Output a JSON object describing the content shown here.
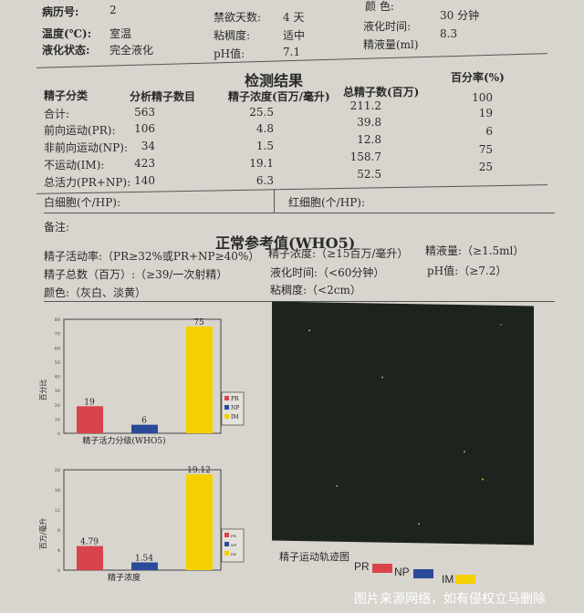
{
  "header": {
    "record_no_label": "病历号:",
    "record_no": "2",
    "abstinence_label": "禁欲天数:",
    "abstinence": "4 天",
    "color_label": "颜 色:",
    "liq_time_label": "液化时间:",
    "liq_time": "30  分钟",
    "temp_label": "温度(℃):",
    "temp": "室温",
    "viscosity_label": "粘稠度:",
    "viscosity": "适中",
    "volume_label": "精液量(ml)",
    "volume": "8.3",
    "liq_state_label": "液化状态:",
    "liq_state": "完全液化",
    "ph_label": "pH值:",
    "ph": "7.1"
  },
  "results": {
    "title": "检测结果",
    "columns": [
      "精子分类",
      "分析精子数目",
      "精子浓度(百万/毫升)",
      "总精子数(百万)",
      "百分率(%)"
    ],
    "rows": [
      {
        "label": "合计:",
        "count": "563",
        "conc": "25.5",
        "total": "211.2",
        "pct": "100"
      },
      {
        "label": "前向运动(PR):",
        "count": "106",
        "conc": "4.8",
        "total": "39.8",
        "pct": "19"
      },
      {
        "label": "非前向运动(NP):",
        "count": "34",
        "conc": "1.5",
        "total": "12.8",
        "pct": "6"
      },
      {
        "label": "不运动(IM):",
        "count": "423",
        "conc": "19.1",
        "total": "158.7",
        "pct": "75"
      },
      {
        "label": "总活力(PR+NP):",
        "count": "140",
        "conc": "6.3",
        "total": "52.5",
        "pct": "25"
      }
    ],
    "wbc_label": "白细胞(个/HP):",
    "rbc_label": "红细胞(个/HP):",
    "notes_label": "备注:"
  },
  "reference": {
    "title": "正常参考值(WHO5)",
    "motility": "精子活动率:（PR≥32%或PR+NP≥40%）",
    "concentration": "精子浓度:（≥15百万/毫升）",
    "volume": "精液量:（≥1.5ml）",
    "total": "精子总数（百万）:（≥39/一次射精）",
    "liq_time": "液化时间:（<60分钟）",
    "ph": "pH值:（≥7.2）",
    "color": "颜色:（灰白、淡黄）",
    "viscosity": "粘稠度:（<2cm）"
  },
  "chart_data": [
    {
      "type": "bar",
      "categories": [
        "PR",
        "NP",
        "IM"
      ],
      "values": [
        19,
        6,
        75
      ],
      "value_labels": [
        "19",
        "6",
        "75"
      ],
      "xlabel": "精子活力分级(WHO5)",
      "ylabel": "百分比",
      "ylim": [
        0,
        80
      ],
      "yticks": [
        0,
        10,
        20,
        30,
        40,
        50,
        60,
        70,
        80
      ],
      "legend": [
        "PR",
        "NP",
        "IM"
      ],
      "legend_position": "right",
      "colors": [
        "#d9434a",
        "#2a4a9a",
        "#f5d000"
      ]
    },
    {
      "type": "bar",
      "categories": [
        "PR",
        "NP",
        "IM"
      ],
      "values": [
        4.79,
        1.54,
        19.12
      ],
      "value_labels": [
        "4.79",
        "1.54",
        "19.12"
      ],
      "xlabel": "精子浓度",
      "ylabel": "百万/毫升",
      "ylim": [
        0,
        20
      ],
      "yticks": [
        0,
        4,
        8,
        12,
        16,
        20
      ],
      "legend": [
        "PR",
        "NP",
        "IM"
      ],
      "legend_position": "right",
      "colors": [
        "#d9434a",
        "#2a4a9a",
        "#f5d000"
      ]
    }
  ],
  "trajectory": {
    "caption": "精子运动轨迹图",
    "legend": [
      "PR",
      "NP",
      "IM"
    ],
    "colors": [
      "#d9434a",
      "#2a4a9a",
      "#f5d000"
    ]
  },
  "watermark": "图片来源网络，如有侵权立马删除"
}
